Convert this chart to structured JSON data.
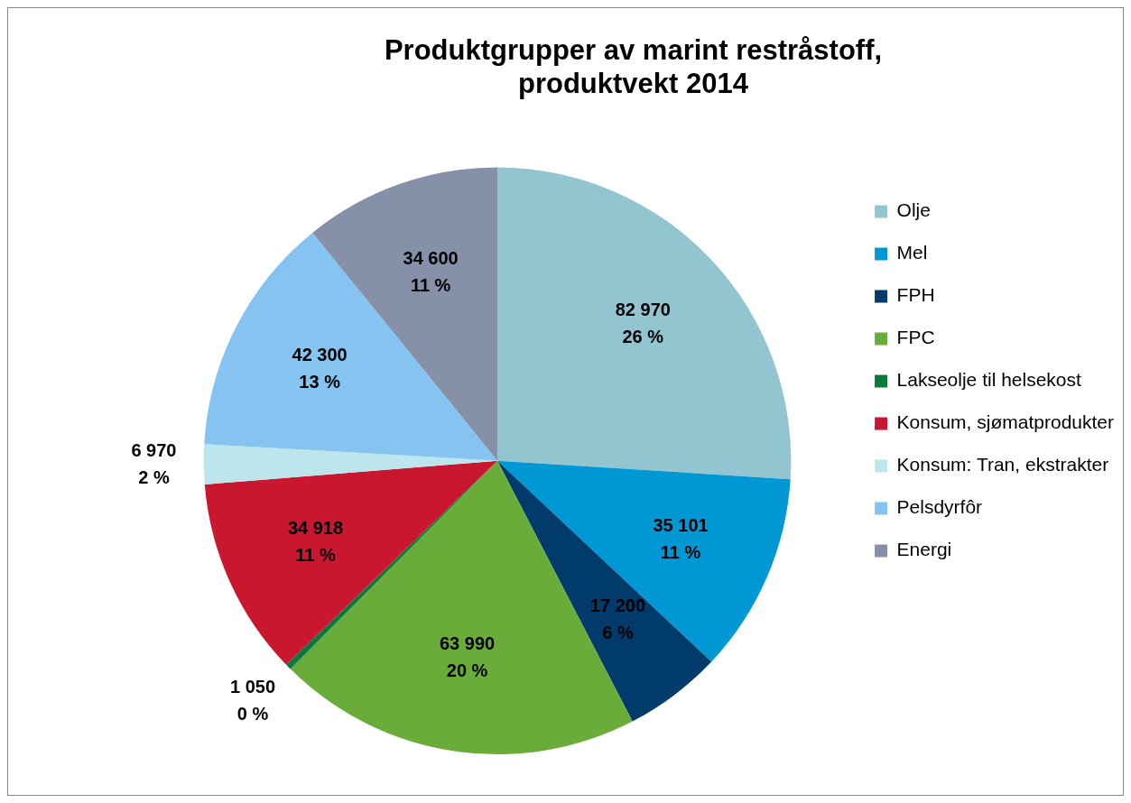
{
  "chart_data": {
    "type": "pie",
    "title": "Produktgrupper av marint restråstoff,\nproduktvekt 2014",
    "categories": [
      "Olje",
      "Mel",
      "FPH",
      "FPC",
      "Lakseolje til helsekost",
      "Konsum, sjømatprodukter",
      "Konsum: Tran, ekstrakter",
      "Pelsdyrfôr",
      "Energi"
    ],
    "values": [
      82970,
      35101,
      17200,
      63990,
      1050,
      34918,
      6970,
      42300,
      34600
    ],
    "colors": [
      "#92c5d0",
      "#0098d4",
      "#003b6b",
      "#6aac3a",
      "#0a7a3c",
      "#c8172f",
      "#bce5ec",
      "#85c4f0",
      "#8690a8"
    ],
    "value_labels": [
      "82 970\n26 %",
      "35 101\n11 %",
      "17 200\n6 %",
      "63 990\n20 %",
      "1 050\n0 %",
      "34 918\n11 %",
      "6 970\n2 %",
      "42 300\n13 %",
      "34 600\n11 %"
    ],
    "legend": "right"
  }
}
